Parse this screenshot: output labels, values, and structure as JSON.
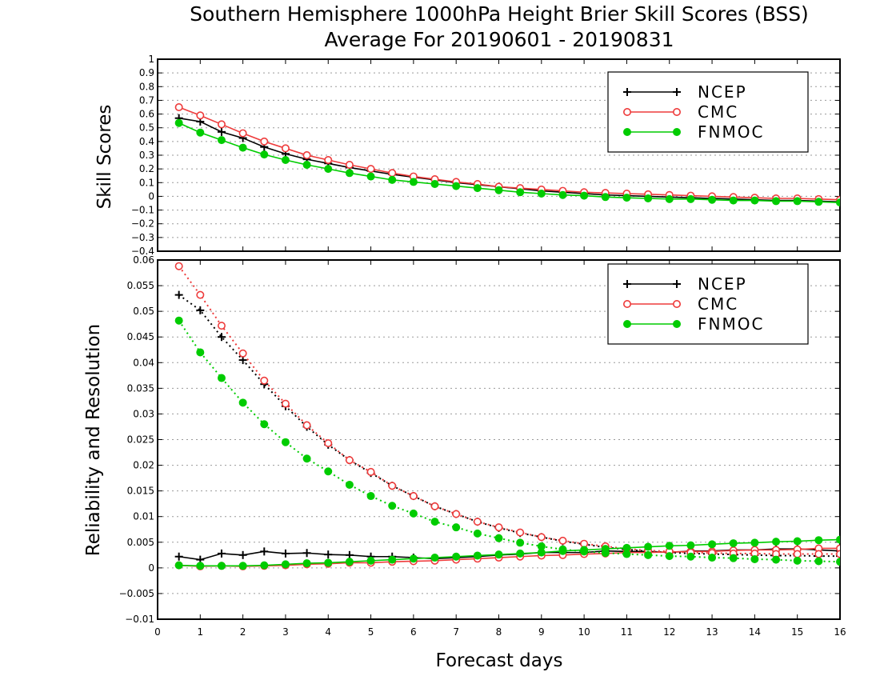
{
  "title": {
    "line1": "Southern Hemisphere 1000hPa Height Brier Skill Scores (BSS)",
    "line2": "Average For 20190601 - 20190831"
  },
  "colors": {
    "NCEP": "#000000",
    "CMC": "#ee3b3b",
    "FNMOC": "#00cc00",
    "frame": "#000000",
    "grid": "#9a9a9a"
  },
  "chart_data": [
    {
      "type": "line",
      "ylabel": "Skill Scores",
      "xlabel": "",
      "xlim": [
        0,
        16
      ],
      "ylim": [
        -0.4,
        1
      ],
      "x_ticks": [
        "0",
        "1",
        "2",
        "3",
        "4",
        "5",
        "6",
        "7",
        "8",
        "9",
        "10",
        "11",
        "12",
        "13",
        "14",
        "15",
        "16"
      ],
      "y_ticks": [
        "−0.4",
        "−0.3",
        "−0.2",
        "−0.1",
        "0",
        "0.1",
        "0.2",
        "0.3",
        "0.4",
        "0.5",
        "0.6",
        "0.7",
        "0.8",
        "0.9",
        "1"
      ],
      "grid": true,
      "legend": "top-right",
      "x": [
        0.5,
        1,
        1.5,
        2,
        2.5,
        3,
        3.5,
        4,
        4.5,
        5,
        5.5,
        6,
        6.5,
        7,
        7.5,
        8,
        8.5,
        9,
        9.5,
        10,
        10.5,
        11,
        11.5,
        12,
        12.5,
        13,
        13.5,
        14,
        14.5,
        15,
        15.5,
        16
      ],
      "series": [
        {
          "name": "NCEP",
          "marker": "plus",
          "values": [
            0.57,
            0.545,
            0.47,
            0.425,
            0.36,
            0.31,
            0.27,
            0.24,
            0.21,
            0.185,
            0.16,
            0.14,
            0.12,
            0.1,
            0.085,
            0.07,
            0.055,
            0.04,
            0.03,
            0.02,
            0.01,
            0.005,
            0.0,
            -0.005,
            -0.01,
            -0.015,
            -0.02,
            -0.025,
            -0.03,
            -0.03,
            -0.035,
            -0.04
          ]
        },
        {
          "name": "CMC",
          "marker": "open-circle",
          "values": [
            0.65,
            0.59,
            0.525,
            0.46,
            0.4,
            0.35,
            0.3,
            0.265,
            0.23,
            0.2,
            0.17,
            0.145,
            0.125,
            0.105,
            0.09,
            0.07,
            0.06,
            0.05,
            0.04,
            0.03,
            0.025,
            0.02,
            0.015,
            0.01,
            0.005,
            0.0,
            -0.005,
            -0.01,
            -0.015,
            -0.015,
            -0.02,
            -0.025
          ]
        },
        {
          "name": "FNMOC",
          "marker": "filled-circle",
          "values": [
            0.535,
            0.465,
            0.41,
            0.355,
            0.305,
            0.265,
            0.23,
            0.2,
            0.17,
            0.145,
            0.12,
            0.105,
            0.09,
            0.075,
            0.06,
            0.045,
            0.03,
            0.02,
            0.01,
            0.005,
            -0.005,
            -0.01,
            -0.015,
            -0.02,
            -0.02,
            -0.025,
            -0.03,
            -0.03,
            -0.035,
            -0.035,
            -0.04,
            -0.045
          ]
        }
      ]
    },
    {
      "type": "line",
      "ylabel": "Reliability and Resolution",
      "xlabel": "Forecast days",
      "xlim": [
        0,
        16
      ],
      "ylim": [
        -0.01,
        0.06
      ],
      "x_ticks": [
        "0",
        "1",
        "2",
        "3",
        "4",
        "5",
        "6",
        "7",
        "8",
        "9",
        "10",
        "11",
        "12",
        "13",
        "14",
        "15",
        "16"
      ],
      "y_ticks": [
        "−0.01",
        "−0.005",
        "0",
        "0.005",
        "0.01",
        "0.015",
        "0.02",
        "0.025",
        "0.03",
        "0.035",
        "0.04",
        "0.045",
        "0.05",
        "0.055",
        "0.06"
      ],
      "grid": true,
      "legend": "top-right",
      "x": [
        0.5,
        1,
        1.5,
        2,
        2.5,
        3,
        3.5,
        4,
        4.5,
        5,
        5.5,
        6,
        6.5,
        7,
        7.5,
        8,
        8.5,
        9,
        9.5,
        10,
        10.5,
        11,
        11.5,
        12,
        12.5,
        13,
        13.5,
        14,
        14.5,
        15,
        15.5,
        16
      ],
      "series": [
        {
          "name": "NCEP",
          "marker": "plus",
          "kind": "reliability",
          "values": [
            0.0022,
            0.0016,
            0.0028,
            0.0025,
            0.0032,
            0.0028,
            0.0029,
            0.0026,
            0.0025,
            0.0022,
            0.0022,
            0.002,
            0.0018,
            0.002,
            0.0022,
            0.0025,
            0.0027,
            0.003,
            0.003,
            0.003,
            0.0033,
            0.0032,
            0.0032,
            0.003,
            0.0033,
            0.0033,
            0.0035,
            0.0035,
            0.0037,
            0.0037,
            0.0035,
            0.0033
          ]
        },
        {
          "name": "NCEP",
          "marker": "plus",
          "kind": "resolution",
          "values": [
            0.0532,
            0.0502,
            0.045,
            0.0405,
            0.0358,
            0.0315,
            0.0275,
            0.024,
            0.021,
            0.0185,
            0.016,
            0.014,
            0.012,
            0.0105,
            0.009,
            0.0078,
            0.0068,
            0.006,
            0.0052,
            0.0046,
            0.004,
            0.0036,
            0.0032,
            0.003,
            0.0028,
            0.0027,
            0.0026,
            0.0025,
            0.0024,
            0.0024,
            0.0023,
            0.0023
          ]
        },
        {
          "name": "CMC",
          "marker": "open-circle",
          "kind": "reliability",
          "values": [
            0.0005,
            0.0003,
            0.0004,
            0.0003,
            0.0004,
            0.0005,
            0.0007,
            0.0008,
            0.001,
            0.001,
            0.0012,
            0.0013,
            0.0014,
            0.0016,
            0.0018,
            0.002,
            0.0022,
            0.0024,
            0.0025,
            0.0027,
            0.0028,
            0.003,
            0.003,
            0.0031,
            0.0032,
            0.0032,
            0.0034,
            0.0035,
            0.0035,
            0.0036,
            0.0038,
            0.0038
          ]
        },
        {
          "name": "CMC",
          "marker": "open-circle",
          "kind": "resolution",
          "values": [
            0.0588,
            0.0532,
            0.0472,
            0.0418,
            0.0365,
            0.032,
            0.0278,
            0.0243,
            0.021,
            0.0187,
            0.016,
            0.014,
            0.012,
            0.0105,
            0.009,
            0.0079,
            0.0069,
            0.006,
            0.0053,
            0.0047,
            0.0042,
            0.0037,
            0.0034,
            0.0032,
            0.003,
            0.0029,
            0.0028,
            0.0028,
            0.0027,
            0.0027,
            0.0027,
            0.0027
          ]
        },
        {
          "name": "FNMOC",
          "marker": "filled-circle",
          "kind": "reliability",
          "values": [
            0.0005,
            0.0004,
            0.0004,
            0.0004,
            0.0005,
            0.0007,
            0.0009,
            0.001,
            0.0012,
            0.0014,
            0.0016,
            0.0018,
            0.002,
            0.0022,
            0.0024,
            0.0026,
            0.0028,
            0.003,
            0.0033,
            0.0035,
            0.0037,
            0.0039,
            0.0041,
            0.0043,
            0.0044,
            0.0046,
            0.0048,
            0.0049,
            0.0051,
            0.0052,
            0.0054,
            0.0055
          ]
        },
        {
          "name": "FNMOC",
          "marker": "filled-circle",
          "kind": "resolution",
          "values": [
            0.0482,
            0.042,
            0.037,
            0.0322,
            0.028,
            0.0245,
            0.0213,
            0.0188,
            0.0162,
            0.014,
            0.0121,
            0.0106,
            0.009,
            0.0079,
            0.0067,
            0.0058,
            0.0049,
            0.0042,
            0.0036,
            0.0032,
            0.0029,
            0.0027,
            0.0025,
            0.0023,
            0.0022,
            0.002,
            0.0019,
            0.0017,
            0.0016,
            0.0014,
            0.0013,
            0.0012
          ]
        }
      ]
    }
  ]
}
